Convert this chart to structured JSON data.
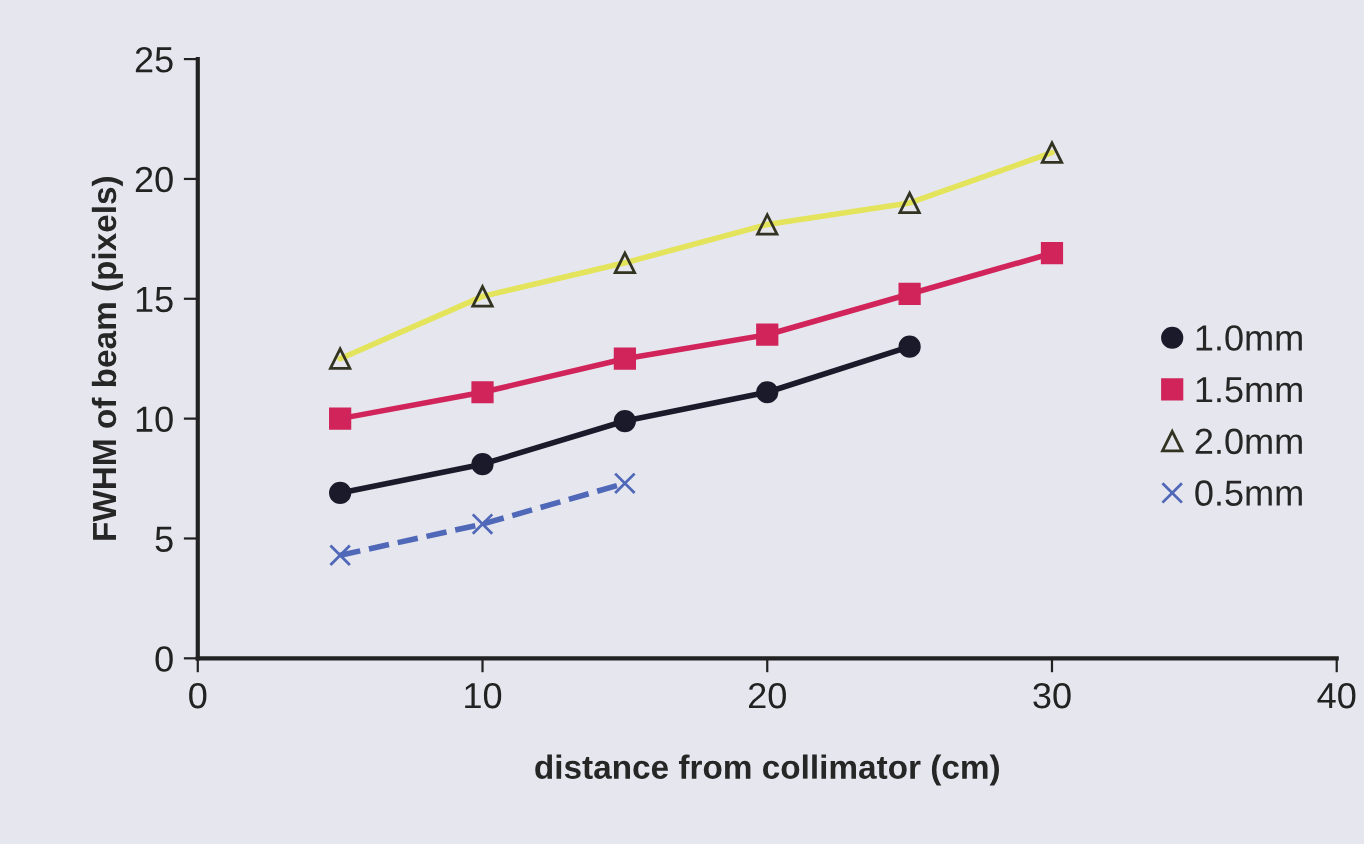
{
  "chart_data": {
    "type": "line",
    "xlabel": "distance from collimator (cm)",
    "ylabel": "FWHM of beam (pixels)",
    "xlim": [
      0,
      40
    ],
    "xticks": [
      0,
      10,
      20,
      30,
      40
    ],
    "ylim": [
      0,
      25
    ],
    "yticks": [
      0,
      5,
      10,
      15,
      20,
      25
    ],
    "grid": false,
    "legend": "right",
    "series": [
      {
        "name": "1.0mm",
        "color": "#1a1a2a",
        "marker": "circle",
        "line_style": "solid",
        "x": [
          5,
          10,
          15,
          20,
          25
        ],
        "values": [
          6.9,
          8.1,
          9.9,
          11.1,
          13.0
        ]
      },
      {
        "name": "1.5mm",
        "color": "#d0245a",
        "marker": "square",
        "line_style": "solid",
        "x": [
          5,
          10,
          15,
          20,
          25,
          30
        ],
        "values": [
          10.0,
          11.1,
          12.5,
          13.5,
          15.2,
          16.9
        ]
      },
      {
        "name": "2.0mm",
        "color": "#e4e45c",
        "marker": "triangle",
        "line_style": "solid",
        "x": [
          5,
          10,
          15,
          20,
          25,
          30
        ],
        "values": [
          12.5,
          15.1,
          16.5,
          18.1,
          19.0,
          21.1
        ]
      },
      {
        "name": "0.5mm",
        "color": "#5068b8",
        "marker": "cross",
        "line_style": "dashed",
        "x": [
          5,
          10,
          15
        ],
        "values": [
          4.3,
          5.6,
          7.3
        ]
      }
    ]
  }
}
